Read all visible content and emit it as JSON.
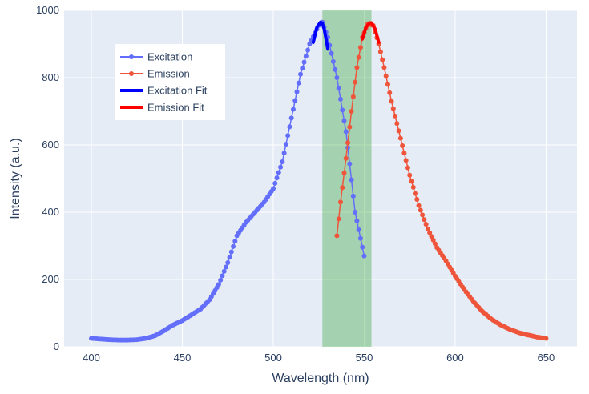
{
  "chart_data": {
    "type": "line",
    "title": "",
    "xlabel": "Wavelength (nm)",
    "ylabel": "Intensity (a.u.)",
    "xlim": [
      385,
      667
    ],
    "ylim": [
      0,
      1000
    ],
    "xticks": [
      400,
      450,
      500,
      550,
      600,
      650
    ],
    "yticks": [
      0,
      200,
      400,
      600,
      800,
      1000
    ],
    "grid": true,
    "legend_position": "top-left",
    "highlight_band": {
      "x0": 527,
      "x1": 554,
      "color": "#2ca02c",
      "opacity": 0.35
    },
    "series": [
      {
        "name": "Excitation",
        "type": "lines+markers",
        "color": "#636efa",
        "x": [
          400,
          405,
          410,
          415,
          420,
          425,
          430,
          435,
          440,
          445,
          450,
          455,
          460,
          465,
          470,
          475,
          480,
          485,
          490,
          495,
          500,
          505,
          510,
          515,
          520,
          525,
          527,
          530,
          535,
          540,
          545,
          550
        ],
        "y": [
          25,
          23,
          21,
          20,
          20,
          21,
          25,
          33,
          48,
          65,
          78,
          95,
          112,
          140,
          185,
          250,
          330,
          370,
          400,
          430,
          470,
          550,
          680,
          810,
          900,
          955,
          965,
          920,
          800,
          640,
          400,
          270
        ]
      },
      {
        "name": "Emission",
        "type": "lines+markers",
        "color": "#ef553b",
        "x": [
          535,
          537,
          540,
          543,
          546,
          549,
          552,
          555,
          558,
          561,
          565,
          570,
          575,
          580,
          585,
          590,
          595,
          600,
          605,
          610,
          615,
          620,
          625,
          630,
          635,
          640,
          645,
          650
        ],
        "y": [
          330,
          430,
          560,
          700,
          830,
          920,
          960,
          955,
          900,
          830,
          730,
          620,
          510,
          420,
          350,
          295,
          255,
          210,
          170,
          135,
          105,
          82,
          65,
          52,
          42,
          35,
          29,
          25
        ]
      },
      {
        "name": "Excitation Fit",
        "type": "lines",
        "color": "#0000ff",
        "x": [
          522,
          524,
          526,
          527,
          528,
          530
        ],
        "y": [
          905,
          950,
          965,
          962,
          945,
          885
        ]
      },
      {
        "name": "Emission Fit",
        "type": "lines",
        "color": "#ff0000",
        "x": [
          549,
          551,
          553,
          554,
          556,
          558
        ],
        "y": [
          915,
          950,
          963,
          963,
          945,
          905
        ]
      }
    ]
  }
}
